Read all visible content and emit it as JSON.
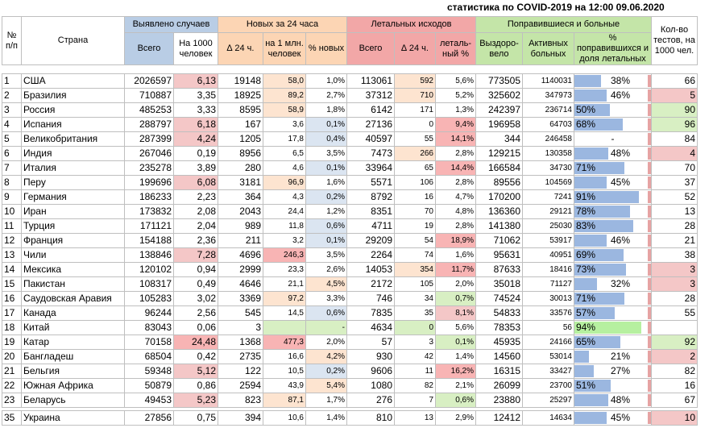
{
  "title": "статистика по COVID-2019 на 12:00 09.06.2020",
  "headers": {
    "num": "№ п/п",
    "country": "Страна",
    "cases": "Выявлено случаев",
    "cases_total": "Всего",
    "cases_per1000": "На 1000 человек",
    "new24": "Новых за 24 часа",
    "new_delta": "∆ 24 ч.",
    "new_per1m": "на 1 млн. человек",
    "new_pct": "% новых",
    "deaths": "Летальных исходов",
    "deaths_total": "Всего",
    "deaths_delta": "∆ 24 ч.",
    "deaths_pct": "леталь-ный %",
    "recovered": "Поправившиеся и больные",
    "recovered_total": "Выздоро-вело",
    "active": "Активных больных",
    "recovered_pct": "% поправившихся и доля летальных",
    "tests": "Кол-во тестов, на 1000 чел."
  },
  "colors": {
    "blue_header": "#b9cde5",
    "orange_header": "#fcd5b4",
    "red_header": "#f2a7a7",
    "green_header": "#c4e5a8",
    "pink_cell": "#f4c7c7",
    "orange_cell": "#fde4d0",
    "red_cell": "#f8b4b4",
    "blue_cell": "#dbe5f1",
    "green_cell": "#d8efc3",
    "bright_green": "#b6f0a0",
    "bar_blue": "#9bb7e0",
    "bar_red": "#e6a3a3"
  },
  "rows": [
    {
      "n": "1",
      "country": "США",
      "total": "2026597",
      "per1000": "6,13",
      "new": "19148",
      "per1m": "58,0",
      "pct_new": "1,0%",
      "deaths": "113061",
      "d_delta": "592",
      "d_pct": "5,6%",
      "recovered": "773505",
      "active": "1140031",
      "rec_pct": "38%",
      "rec_frac": 0.38,
      "tests": "66",
      "c_per1000": "pink",
      "c_per1m": "orange",
      "c_pctnew": "",
      "c_ddelta": "orange",
      "c_dpct": "",
      "c_tests": ""
    },
    {
      "n": "2",
      "country": "Бразилия",
      "total": "710887",
      "per1000": "3,35",
      "new": "18925",
      "per1m": "89,2",
      "pct_new": "2,7%",
      "deaths": "37312",
      "d_delta": "710",
      "d_pct": "5,2%",
      "recovered": "325602",
      "active": "347973",
      "rec_pct": "46%",
      "rec_frac": 0.46,
      "tests": "5",
      "c_per1000": "",
      "c_per1m": "orange",
      "c_pctnew": "",
      "c_ddelta": "orange",
      "c_dpct": "",
      "c_tests": "pink"
    },
    {
      "n": "3",
      "country": "Россия",
      "total": "485253",
      "per1000": "3,33",
      "new": "8595",
      "per1m": "58,9",
      "pct_new": "1,8%",
      "deaths": "6142",
      "d_delta": "171",
      "d_pct": "1,3%",
      "recovered": "242397",
      "active": "236714",
      "rec_pct": "50%",
      "rec_frac": 0.5,
      "tests": "90",
      "c_per1000": "",
      "c_per1m": "orange",
      "c_pctnew": "",
      "c_ddelta": "",
      "c_dpct": "",
      "c_tests": "green"
    },
    {
      "n": "4",
      "country": "Испания",
      "total": "288797",
      "per1000": "6,18",
      "new": "167",
      "per1m": "3,6",
      "pct_new": "0,1%",
      "deaths": "27136",
      "d_delta": "0",
      "d_pct": "9,4%",
      "recovered": "196958",
      "active": "64703",
      "rec_pct": "68%",
      "rec_frac": 0.68,
      "tests": "96",
      "c_per1000": "pink",
      "c_per1m": "",
      "c_pctnew": "blue",
      "c_ddelta": "",
      "c_dpct": "red",
      "c_tests": "green"
    },
    {
      "n": "5",
      "country": "Великобритания",
      "total": "287399",
      "per1000": "4,24",
      "new": "1205",
      "per1m": "17,8",
      "pct_new": "0,4%",
      "deaths": "40597",
      "d_delta": "55",
      "d_pct": "14,1%",
      "recovered": "344",
      "active": "246458",
      "rec_pct": "-",
      "rec_frac": 0,
      "tests": "84",
      "c_per1000": "pink",
      "c_per1m": "",
      "c_pctnew": "blue",
      "c_ddelta": "",
      "c_dpct": "red",
      "c_tests": ""
    },
    {
      "n": "6",
      "country": "Индия",
      "total": "267046",
      "per1000": "0,19",
      "new": "8956",
      "per1m": "6,5",
      "pct_new": "3,5%",
      "deaths": "7473",
      "d_delta": "266",
      "d_pct": "2,8%",
      "recovered": "129215",
      "active": "130358",
      "rec_pct": "48%",
      "rec_frac": 0.48,
      "tests": "4",
      "c_per1000": "",
      "c_per1m": "",
      "c_pctnew": "",
      "c_ddelta": "orange",
      "c_dpct": "",
      "c_tests": "pink"
    },
    {
      "n": "7",
      "country": "Италия",
      "total": "235278",
      "per1000": "3,89",
      "new": "280",
      "per1m": "4,6",
      "pct_new": "0,1%",
      "deaths": "33964",
      "d_delta": "65",
      "d_pct": "14,4%",
      "recovered": "166584",
      "active": "34730",
      "rec_pct": "71%",
      "rec_frac": 0.71,
      "tests": "70",
      "c_per1000": "",
      "c_per1m": "",
      "c_pctnew": "blue",
      "c_ddelta": "",
      "c_dpct": "red",
      "c_tests": ""
    },
    {
      "n": "8",
      "country": "Перу",
      "total": "199696",
      "per1000": "6,08",
      "new": "3181",
      "per1m": "96,9",
      "pct_new": "1,6%",
      "deaths": "5571",
      "d_delta": "106",
      "d_pct": "2,8%",
      "recovered": "89556",
      "active": "104569",
      "rec_pct": "45%",
      "rec_frac": 0.45,
      "tests": "37",
      "c_per1000": "pink",
      "c_per1m": "orange",
      "c_pctnew": "",
      "c_ddelta": "",
      "c_dpct": "",
      "c_tests": ""
    },
    {
      "n": "9",
      "country": "Германия",
      "total": "186233",
      "per1000": "2,23",
      "new": "364",
      "per1m": "4,3",
      "pct_new": "0,2%",
      "deaths": "8792",
      "d_delta": "16",
      "d_pct": "4,7%",
      "recovered": "170200",
      "active": "7241",
      "rec_pct": "91%",
      "rec_frac": 0.91,
      "tests": "52",
      "c_per1000": "",
      "c_per1m": "",
      "c_pctnew": "blue",
      "c_ddelta": "",
      "c_dpct": "",
      "c_tests": ""
    },
    {
      "n": "10",
      "country": "Иран",
      "total": "173832",
      "per1000": "2,08",
      "new": "2043",
      "per1m": "24,4",
      "pct_new": "1,2%",
      "deaths": "8351",
      "d_delta": "70",
      "d_pct": "4,8%",
      "recovered": "136360",
      "active": "29121",
      "rec_pct": "78%",
      "rec_frac": 0.78,
      "tests": "13",
      "c_per1000": "",
      "c_per1m": "",
      "c_pctnew": "",
      "c_ddelta": "",
      "c_dpct": "",
      "c_tests": ""
    },
    {
      "n": "11",
      "country": "Турция",
      "total": "171121",
      "per1000": "2,04",
      "new": "989",
      "per1m": "11,8",
      "pct_new": "0,6%",
      "deaths": "4711",
      "d_delta": "19",
      "d_pct": "2,8%",
      "recovered": "141380",
      "active": "25030",
      "rec_pct": "83%",
      "rec_frac": 0.83,
      "tests": "28",
      "c_per1000": "",
      "c_per1m": "",
      "c_pctnew": "blue",
      "c_ddelta": "",
      "c_dpct": "",
      "c_tests": ""
    },
    {
      "n": "12",
      "country": "Франция",
      "total": "154188",
      "per1000": "2,36",
      "new": "211",
      "per1m": "3,2",
      "pct_new": "0,1%",
      "deaths": "29209",
      "d_delta": "54",
      "d_pct": "18,9%",
      "recovered": "71062",
      "active": "53917",
      "rec_pct": "46%",
      "rec_frac": 0.46,
      "tests": "21",
      "c_per1000": "",
      "c_per1m": "",
      "c_pctnew": "blue",
      "c_ddelta": "",
      "c_dpct": "red",
      "c_tests": ""
    },
    {
      "n": "13",
      "country": "Чили",
      "total": "138846",
      "per1000": "7,28",
      "new": "4696",
      "per1m": "246,3",
      "pct_new": "3,5%",
      "deaths": "2264",
      "d_delta": "74",
      "d_pct": "1,6%",
      "recovered": "95631",
      "active": "40951",
      "rec_pct": "69%",
      "rec_frac": 0.69,
      "tests": "38",
      "c_per1000": "pink",
      "c_per1m": "red",
      "c_pctnew": "",
      "c_ddelta": "",
      "c_dpct": "",
      "c_tests": ""
    },
    {
      "n": "14",
      "country": "Мексика",
      "total": "120102",
      "per1000": "0,94",
      "new": "2999",
      "per1m": "23,3",
      "pct_new": "2,6%",
      "deaths": "14053",
      "d_delta": "354",
      "d_pct": "11,7%",
      "recovered": "87633",
      "active": "18416",
      "rec_pct": "73%",
      "rec_frac": 0.73,
      "tests": "3",
      "c_per1000": "",
      "c_per1m": "",
      "c_pctnew": "",
      "c_ddelta": "orange",
      "c_dpct": "red",
      "c_tests": "pink"
    },
    {
      "n": "15",
      "country": "Пакистан",
      "total": "108317",
      "per1000": "0,49",
      "new": "4646",
      "per1m": "21,1",
      "pct_new": "4,5%",
      "deaths": "2172",
      "d_delta": "105",
      "d_pct": "2,0%",
      "recovered": "35018",
      "active": "71127",
      "rec_pct": "32%",
      "rec_frac": 0.32,
      "tests": "3",
      "c_per1000": "",
      "c_per1m": "",
      "c_pctnew": "orange",
      "c_ddelta": "",
      "c_dpct": "",
      "c_tests": "pink"
    },
    {
      "n": "16",
      "country": "Саудовская Аравия",
      "total": "105283",
      "per1000": "3,02",
      "new": "3369",
      "per1m": "97,2",
      "pct_new": "3,3%",
      "deaths": "746",
      "d_delta": "34",
      "d_pct": "0,7%",
      "recovered": "74524",
      "active": "30013",
      "rec_pct": "71%",
      "rec_frac": 0.71,
      "tests": "28",
      "c_per1000": "",
      "c_per1m": "orange",
      "c_pctnew": "",
      "c_ddelta": "",
      "c_dpct": "green",
      "c_tests": ""
    },
    {
      "n": "17",
      "country": "Канада",
      "total": "96244",
      "per1000": "2,56",
      "new": "545",
      "per1m": "14,5",
      "pct_new": "0,6%",
      "deaths": "7835",
      "d_delta": "35",
      "d_pct": "8,1%",
      "recovered": "54833",
      "active": "33576",
      "rec_pct": "57%",
      "rec_frac": 0.57,
      "tests": "55",
      "c_per1000": "",
      "c_per1m": "",
      "c_pctnew": "blue",
      "c_ddelta": "",
      "c_dpct": "pink",
      "c_tests": ""
    },
    {
      "n": "18",
      "country": "Китай",
      "total": "83043",
      "per1000": "0,06",
      "new": "3",
      "per1m": "",
      "pct_new": "-",
      "deaths": "4634",
      "d_delta": "0",
      "d_pct": "5,6%",
      "recovered": "78353",
      "active": "56",
      "rec_pct": "94%",
      "rec_frac": 0.94,
      "tests": "",
      "c_per1000": "",
      "c_per1m": "green",
      "c_pctnew": "green",
      "c_ddelta": "green",
      "c_dpct": "",
      "c_tests": "",
      "bright": true
    },
    {
      "n": "19",
      "country": "Катар",
      "total": "70158",
      "per1000": "24,48",
      "new": "1368",
      "per1m": "477,3",
      "pct_new": "2,0%",
      "deaths": "57",
      "d_delta": "3",
      "d_pct": "0,1%",
      "recovered": "45935",
      "active": "24166",
      "rec_pct": "65%",
      "rec_frac": 0.65,
      "tests": "92",
      "c_per1000": "red",
      "c_per1m": "red",
      "c_pctnew": "",
      "c_ddelta": "",
      "c_dpct": "green",
      "c_tests": "green"
    },
    {
      "n": "20",
      "country": "Бангладеш",
      "total": "68504",
      "per1000": "0,42",
      "new": "2735",
      "per1m": "16,6",
      "pct_new": "4,2%",
      "deaths": "930",
      "d_delta": "42",
      "d_pct": "1,4%",
      "recovered": "14560",
      "active": "53014",
      "rec_pct": "21%",
      "rec_frac": 0.21,
      "tests": "2",
      "c_per1000": "",
      "c_per1m": "",
      "c_pctnew": "orange",
      "c_ddelta": "",
      "c_dpct": "",
      "c_tests": "pink"
    },
    {
      "n": "21",
      "country": "Бельгия",
      "total": "59348",
      "per1000": "5,12",
      "new": "122",
      "per1m": "10,5",
      "pct_new": "0,2%",
      "deaths": "9606",
      "d_delta": "11",
      "d_pct": "16,2%",
      "recovered": "16315",
      "active": "33427",
      "rec_pct": "27%",
      "rec_frac": 0.27,
      "tests": "82",
      "c_per1000": "pink",
      "c_per1m": "",
      "c_pctnew": "blue",
      "c_ddelta": "",
      "c_dpct": "red",
      "c_tests": ""
    },
    {
      "n": "22",
      "country": "Южная Африка",
      "total": "50879",
      "per1000": "0,86",
      "new": "2594",
      "per1m": "43,9",
      "pct_new": "5,4%",
      "deaths": "1080",
      "d_delta": "82",
      "d_pct": "2,1%",
      "recovered": "26099",
      "active": "23700",
      "rec_pct": "51%",
      "rec_frac": 0.51,
      "tests": "16",
      "c_per1000": "",
      "c_per1m": "",
      "c_pctnew": "orange",
      "c_ddelta": "",
      "c_dpct": "",
      "c_tests": ""
    },
    {
      "n": "23",
      "country": "Беларусь",
      "total": "49453",
      "per1000": "5,23",
      "new": "823",
      "per1m": "87,1",
      "pct_new": "1,7%",
      "deaths": "276",
      "d_delta": "7",
      "d_pct": "0,6%",
      "recovered": "23880",
      "active": "25297",
      "rec_pct": "48%",
      "rec_frac": 0.48,
      "tests": "67",
      "c_per1000": "pink",
      "c_per1m": "orange",
      "c_pctnew": "",
      "c_ddelta": "",
      "c_dpct": "green",
      "c_tests": ""
    }
  ],
  "last_row": {
    "n": "35",
    "country": "Украина",
    "total": "27856",
    "per1000": "0,75",
    "new": "394",
    "per1m": "10,6",
    "pct_new": "1,4%",
    "deaths": "810",
    "d_delta": "13",
    "d_pct": "2,9%",
    "recovered": "12412",
    "active": "14634",
    "rec_pct": "45%",
    "rec_frac": 0.45,
    "tests": "10",
    "c_per1000": "",
    "c_per1m": "",
    "c_pctnew": "",
    "c_ddelta": "",
    "c_dpct": "",
    "c_tests": "pink"
  }
}
